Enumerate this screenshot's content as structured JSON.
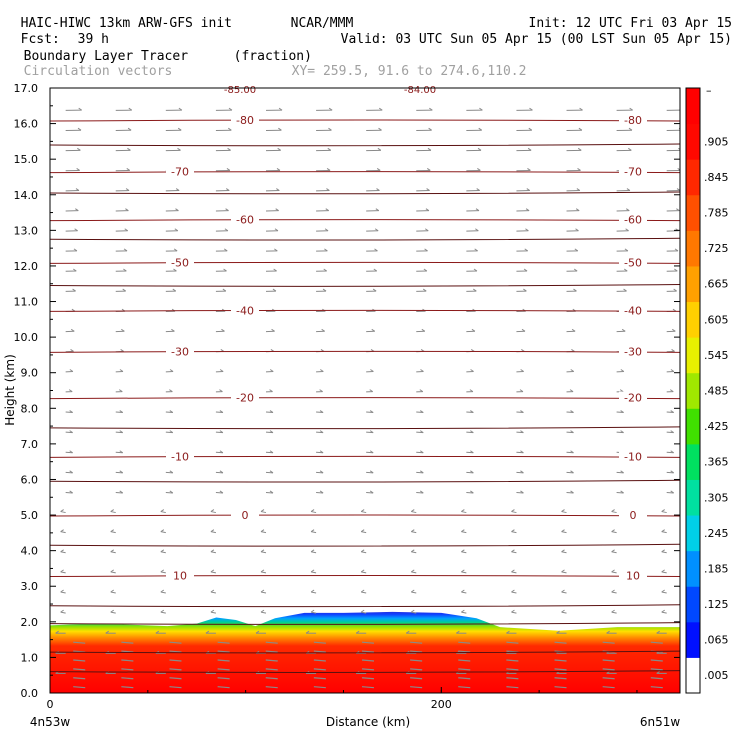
{
  "header": {
    "model": "HAIC-HIWC 13km ARW-GFS init",
    "org": "NCAR/MMM",
    "fcst_label": "Fcst:",
    "fcst_value": "39 h",
    "init": "Init: 12 UTC Fri 03 Apr 15",
    "valid": "Valid: 03 UTC Sun 05 Apr 15 (00 LST Sun 05 Apr 15)",
    "field": "Boundary Layer Tracer",
    "field_units": "(fraction)",
    "vectors": "Circulation vectors",
    "xy": "XY= 259.5, 91.6 to 274.6,110.2"
  },
  "colors": {
    "contour": "#8b1a1a",
    "vector": "#8a8a8a",
    "background": "#ffffff"
  },
  "chart_data": {
    "type": "heatmap",
    "xlabel": "Distance (km)",
    "ylabel": "Height (km)",
    "xlim": [
      0,
      322
    ],
    "ylim": [
      0,
      17
    ],
    "x_ticks": [
      0,
      200
    ],
    "x_end_labels": {
      "left": "4n53w",
      "right": "6n51w"
    },
    "y_ticks": [
      0.0,
      1.0,
      2.0,
      3.0,
      4.0,
      5.0,
      6.0,
      7.0,
      8.0,
      9.0,
      10.0,
      11.0,
      12.0,
      13.0,
      14.0,
      15.0,
      16.0,
      17.0
    ],
    "colorbar": {
      "labels": [
        ".005",
        ".065",
        ".125",
        ".185",
        ".245",
        ".305",
        ".365",
        ".425",
        ".485",
        ".545",
        ".605",
        ".665",
        ".725",
        ".785",
        ".845",
        ".905"
      ],
      "top_label": "–"
    },
    "contours": [
      {
        "level": "10",
        "y": 3.3
      },
      {
        "level": "0",
        "y": 5.0
      },
      {
        "level": "-10",
        "y": 6.65
      },
      {
        "level": "-20",
        "y": 8.3
      },
      {
        "level": "-30",
        "y": 9.6
      },
      {
        "level": "-40",
        "y": 10.75
      },
      {
        "level": "-50",
        "y": 12.1
      },
      {
        "level": "-60",
        "y": 13.3
      },
      {
        "level": "-70",
        "y": 14.65
      },
      {
        "level": "-80",
        "y": 16.1
      }
    ],
    "top_contour_labels": [
      "-85.00",
      "-84.00"
    ],
    "extra_isolines": [
      0.6,
      1.15,
      1.95,
      2.45,
      4.15,
      5.95,
      7.45,
      11.45,
      12.75,
      14.05,
      15.4
    ],
    "tracer_top_profile": [
      [
        0,
        1.9
      ],
      [
        20,
        1.95
      ],
      [
        40,
        1.92
      ],
      [
        60,
        1.88
      ],
      [
        75,
        1.95
      ],
      [
        85,
        2.12
      ],
      [
        95,
        2.05
      ],
      [
        105,
        1.88
      ],
      [
        115,
        2.1
      ],
      [
        130,
        2.25
      ],
      [
        150,
        2.25
      ],
      [
        175,
        2.28
      ],
      [
        200,
        2.25
      ],
      [
        218,
        2.1
      ],
      [
        230,
        1.85
      ],
      [
        260,
        1.75
      ],
      [
        290,
        1.85
      ],
      [
        322,
        1.85
      ]
    ]
  }
}
